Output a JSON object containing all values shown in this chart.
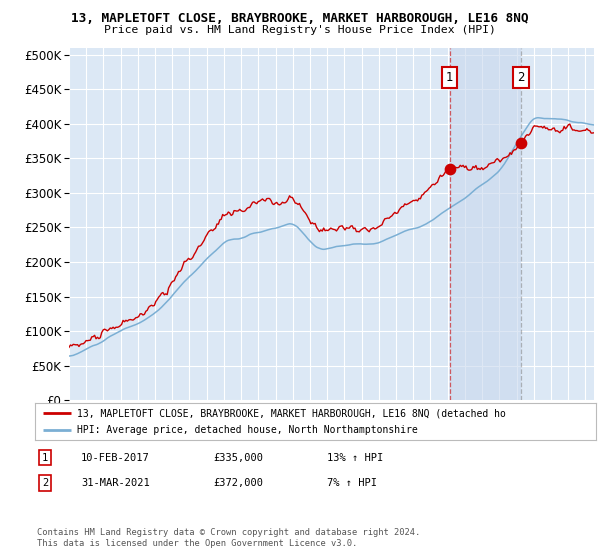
{
  "title": "13, MAPLETOFT CLOSE, BRAYBROOKE, MARKET HARBOROUGH, LE16 8NQ",
  "subtitle": "Price paid vs. HM Land Registry's House Price Index (HPI)",
  "fig_bg_color": "#ffffff",
  "plot_bg_color": "#dce8f5",
  "grid_color": "#ffffff",
  "hpi_color": "#7bafd4",
  "price_color": "#cc0000",
  "shade_color": "#c8d8ee",
  "sale1_year": 2017.11,
  "sale1_price": 335000,
  "sale2_year": 2021.25,
  "sale2_price": 372000,
  "legend_line1": "13, MAPLETOFT CLOSE, BRAYBROOKE, MARKET HARBOROUGH, LE16 8NQ (detached ho",
  "legend_line2": "HPI: Average price, detached house, North Northamptonshire",
  "footer": "Contains HM Land Registry data © Crown copyright and database right 2024.\nThis data is licensed under the Open Government Licence v3.0.",
  "sale1_date": "10-FEB-2017",
  "sale1_pct": "13%",
  "sale2_date": "31-MAR-2021",
  "sale2_pct": "7%",
  "xmin": 1995,
  "xmax": 2025.5,
  "ymin": 0,
  "ymax": 510000
}
